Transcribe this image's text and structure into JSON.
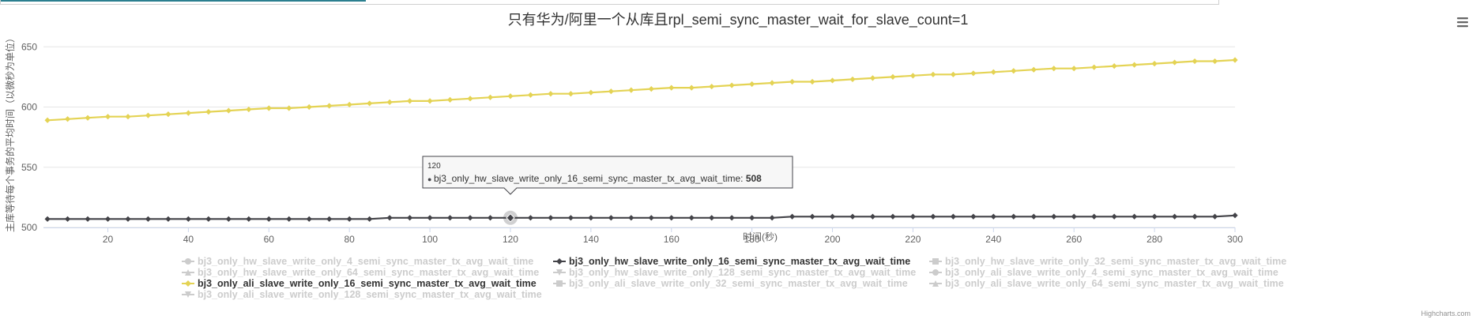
{
  "page": {
    "topbar": {}
  },
  "chart_data": {
    "type": "line",
    "title": "只有华为/阿里一个从库且rpl_semi_sync_master_wait_for_slave_count=1",
    "xlabel": "时间(秒)",
    "ylabel": "主库等待每个事务的平均时间（以微秒为单位）",
    "xlim": [
      4,
      300
    ],
    "ylim": [
      500,
      660
    ],
    "x_ticks": [
      20,
      40,
      60,
      80,
      100,
      120,
      140,
      160,
      180,
      200,
      220,
      240,
      260,
      280,
      300
    ],
    "y_ticks": [
      500,
      550,
      600,
      650
    ],
    "grid": true,
    "legend_position": "bottom",
    "series": [
      {
        "name": "bj3_only_hw_slave_write_only_4_semi_sync_master_tx_avg_wait_time",
        "visible": false,
        "color": "#cccccc",
        "marker": "circle"
      },
      {
        "name": "bj3_only_hw_slave_write_only_16_semi_sync_master_tx_avg_wait_time",
        "visible": true,
        "color": "#434348",
        "marker": "diamond",
        "x": [
          5,
          10,
          15,
          20,
          25,
          30,
          35,
          40,
          45,
          50,
          55,
          60,
          65,
          70,
          75,
          80,
          85,
          90,
          95,
          100,
          105,
          110,
          115,
          120,
          125,
          130,
          135,
          140,
          145,
          150,
          155,
          160,
          165,
          170,
          175,
          180,
          185,
          190,
          195,
          200,
          205,
          210,
          215,
          220,
          225,
          230,
          235,
          240,
          245,
          250,
          255,
          260,
          265,
          270,
          275,
          280,
          285,
          290,
          295,
          300
        ],
        "values": [
          507,
          507,
          507,
          507,
          507,
          507,
          507,
          507,
          507,
          507,
          507,
          507,
          507,
          507,
          507,
          507,
          507,
          508,
          508,
          508,
          508,
          508,
          508,
          508,
          508,
          508,
          508,
          508,
          508,
          508,
          508,
          508,
          508,
          508,
          508,
          508,
          508,
          509,
          509,
          509,
          509,
          509,
          509,
          509,
          509,
          509,
          509,
          509,
          509,
          509,
          509,
          509,
          509,
          509,
          509,
          509,
          509,
          509,
          509,
          510
        ]
      },
      {
        "name": "bj3_only_hw_slave_write_only_32_semi_sync_master_tx_avg_wait_time",
        "visible": false,
        "color": "#cccccc",
        "marker": "square"
      },
      {
        "name": "bj3_only_hw_slave_write_only_64_semi_sync_master_tx_avg_wait_time",
        "visible": false,
        "color": "#cccccc",
        "marker": "triangle"
      },
      {
        "name": "bj3_only_hw_slave_write_only_128_semi_sync_master_tx_avg_wait_time",
        "visible": false,
        "color": "#cccccc",
        "marker": "triangle-down"
      },
      {
        "name": "bj3_only_ali_slave_write_only_4_semi_sync_master_tx_avg_wait_time",
        "visible": false,
        "color": "#cccccc",
        "marker": "circle"
      },
      {
        "name": "bj3_only_ali_slave_write_only_16_semi_sync_master_tx_avg_wait_time",
        "visible": true,
        "color": "#e4d354",
        "marker": "diamond",
        "x": [
          5,
          10,
          15,
          20,
          25,
          30,
          35,
          40,
          45,
          50,
          55,
          60,
          65,
          70,
          75,
          80,
          85,
          90,
          95,
          100,
          105,
          110,
          115,
          120,
          125,
          130,
          135,
          140,
          145,
          150,
          155,
          160,
          165,
          170,
          175,
          180,
          185,
          190,
          195,
          200,
          205,
          210,
          215,
          220,
          225,
          230,
          235,
          240,
          245,
          250,
          255,
          260,
          265,
          270,
          275,
          280,
          285,
          290,
          295,
          300
        ],
        "values": [
          589,
          590,
          591,
          592,
          592,
          593,
          594,
          595,
          596,
          597,
          598,
          599,
          599,
          600,
          601,
          602,
          603,
          604,
          605,
          605,
          606,
          607,
          608,
          609,
          610,
          611,
          611,
          612,
          613,
          614,
          615,
          616,
          616,
          617,
          618,
          619,
          620,
          621,
          621,
          622,
          623,
          624,
          625,
          626,
          627,
          627,
          628,
          629,
          630,
          631,
          632,
          632,
          633,
          634,
          635,
          636,
          637,
          638,
          638,
          639
        ]
      },
      {
        "name": "bj3_only_ali_slave_write_only_32_semi_sync_master_tx_avg_wait_time",
        "visible": false,
        "color": "#cccccc",
        "marker": "square"
      },
      {
        "name": "bj3_only_ali_slave_write_only_64_semi_sync_master_tx_avg_wait_time",
        "visible": false,
        "color": "#cccccc",
        "marker": "triangle"
      },
      {
        "name": "bj3_only_ali_slave_write_only_128_semi_sync_master_tx_avg_wait_time",
        "visible": false,
        "color": "#cccccc",
        "marker": "triangle-down"
      }
    ],
    "tooltip": {
      "x": "120",
      "series_label": "bj3_only_hw_slave_write_only_16_semi_sync_master_tx_avg_wait_time: ",
      "value": "508"
    },
    "credits": "Highcharts.com",
    "menu_icon": "hamburger-menu-icon"
  }
}
